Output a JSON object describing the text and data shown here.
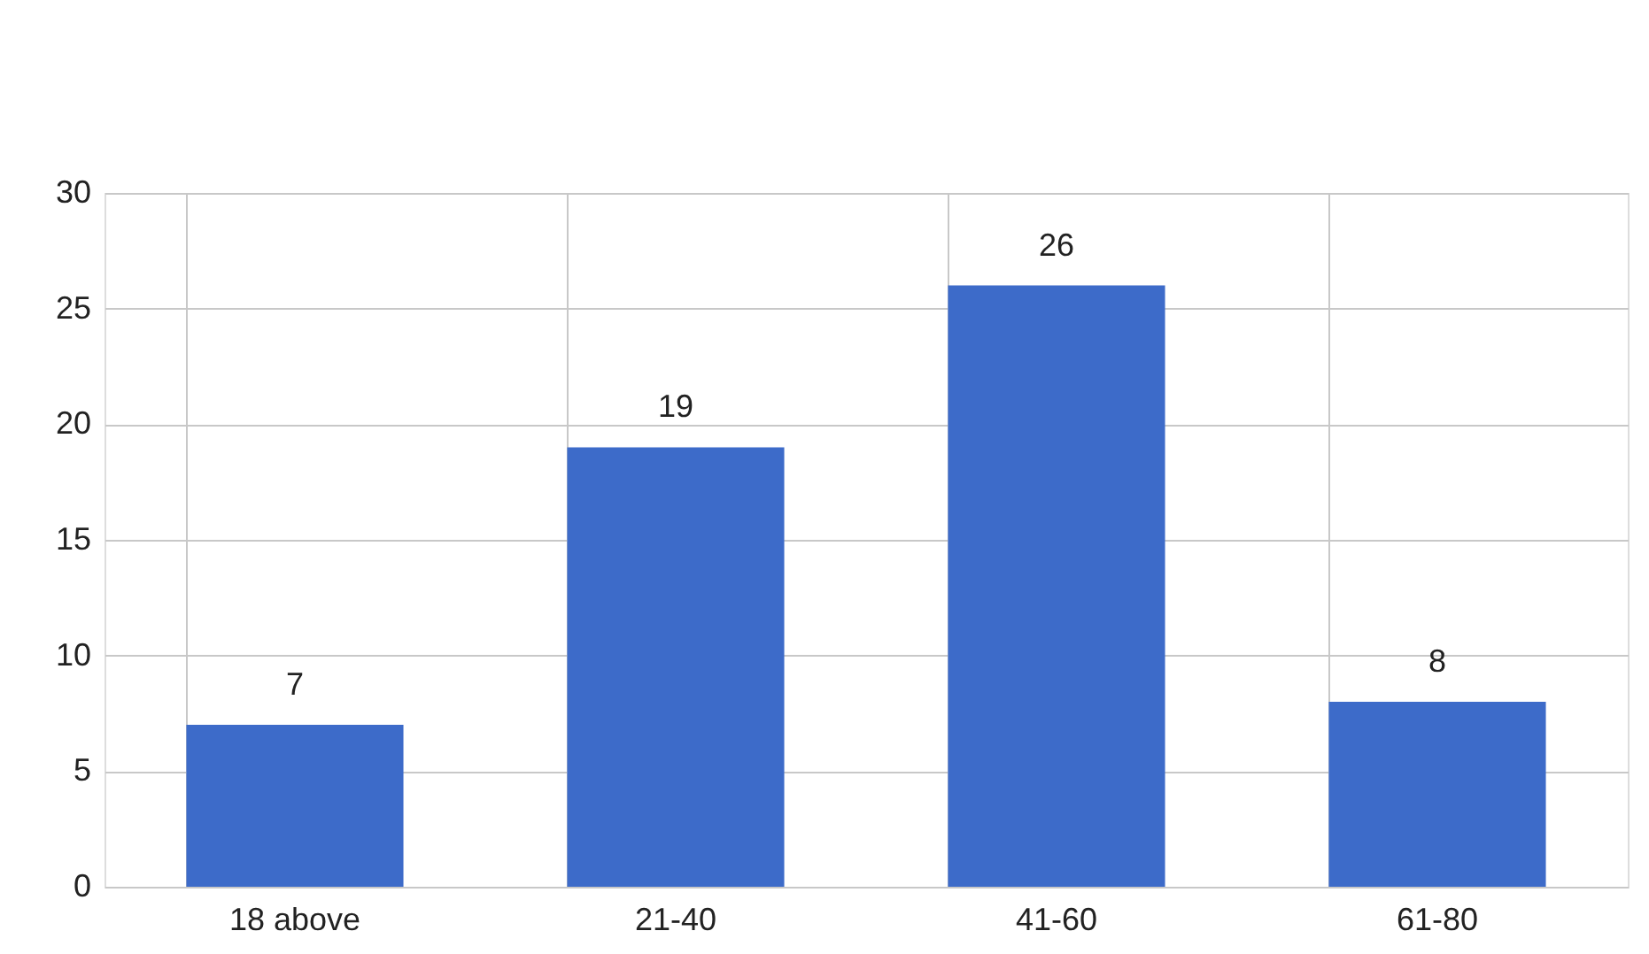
{
  "chart_data": {
    "type": "bar",
    "categories": [
      "18 above",
      "21-40",
      "41-60",
      "61-80"
    ],
    "values": [
      7,
      19,
      26,
      8
    ],
    "color": "#3d6bc9",
    "ylim": [
      0,
      30
    ],
    "yticks": [
      0,
      5,
      10,
      15,
      20,
      25,
      30
    ],
    "grid": true,
    "data_labels": true
  }
}
